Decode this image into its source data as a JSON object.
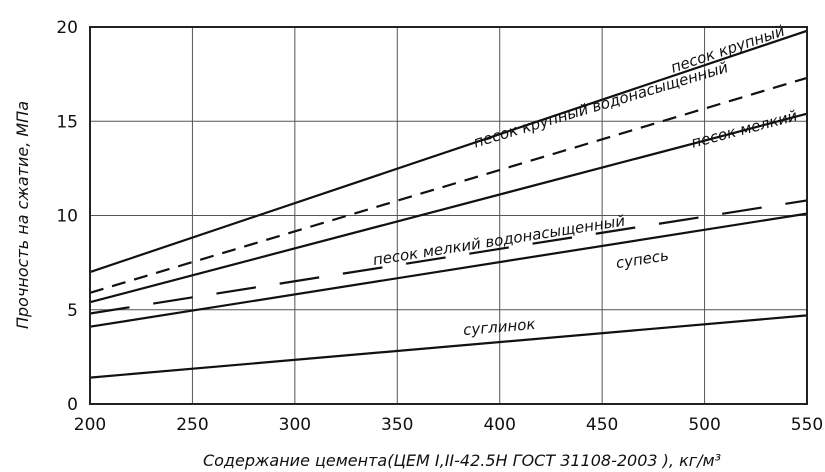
{
  "chart_data": {
    "type": "line",
    "title": "",
    "xlabel": "Содержание цемента(ЦЕМ I,II-42.5Н ГОСТ 31108-2003 ), кг/м³",
    "ylabel": "Прочность на сжатие, МПа",
    "xlim": [
      200,
      550
    ],
    "ylim": [
      0,
      20
    ],
    "xticks": [
      "200",
      "250",
      "300",
      "350",
      "400",
      "450",
      "500",
      "550"
    ],
    "yticks": [
      "0",
      "5",
      "10",
      "15",
      "20"
    ],
    "grid": true,
    "series": [
      {
        "name": "песок крупный",
        "style": "solid",
        "x": [
          200,
          550
        ],
        "y": [
          7.0,
          19.8
        ]
      },
      {
        "name": "песок крупный водонасыщенный",
        "style": "dashed",
        "x": [
          200,
          550
        ],
        "y": [
          5.9,
          17.3
        ]
      },
      {
        "name": "песок мелкий",
        "style": "solid",
        "x": [
          200,
          550
        ],
        "y": [
          5.4,
          15.4
        ]
      },
      {
        "name": "песок мелкий водонасыщенный",
        "style": "long-dashed",
        "x": [
          200,
          550
        ],
        "y": [
          4.8,
          10.8
        ]
      },
      {
        "name": "супесь",
        "style": "solid",
        "x": [
          200,
          550
        ],
        "y": [
          4.1,
          10.1
        ]
      },
      {
        "name": "суглинок",
        "style": "solid",
        "x": [
          200,
          550
        ],
        "y": [
          1.4,
          4.7
        ]
      }
    ]
  }
}
